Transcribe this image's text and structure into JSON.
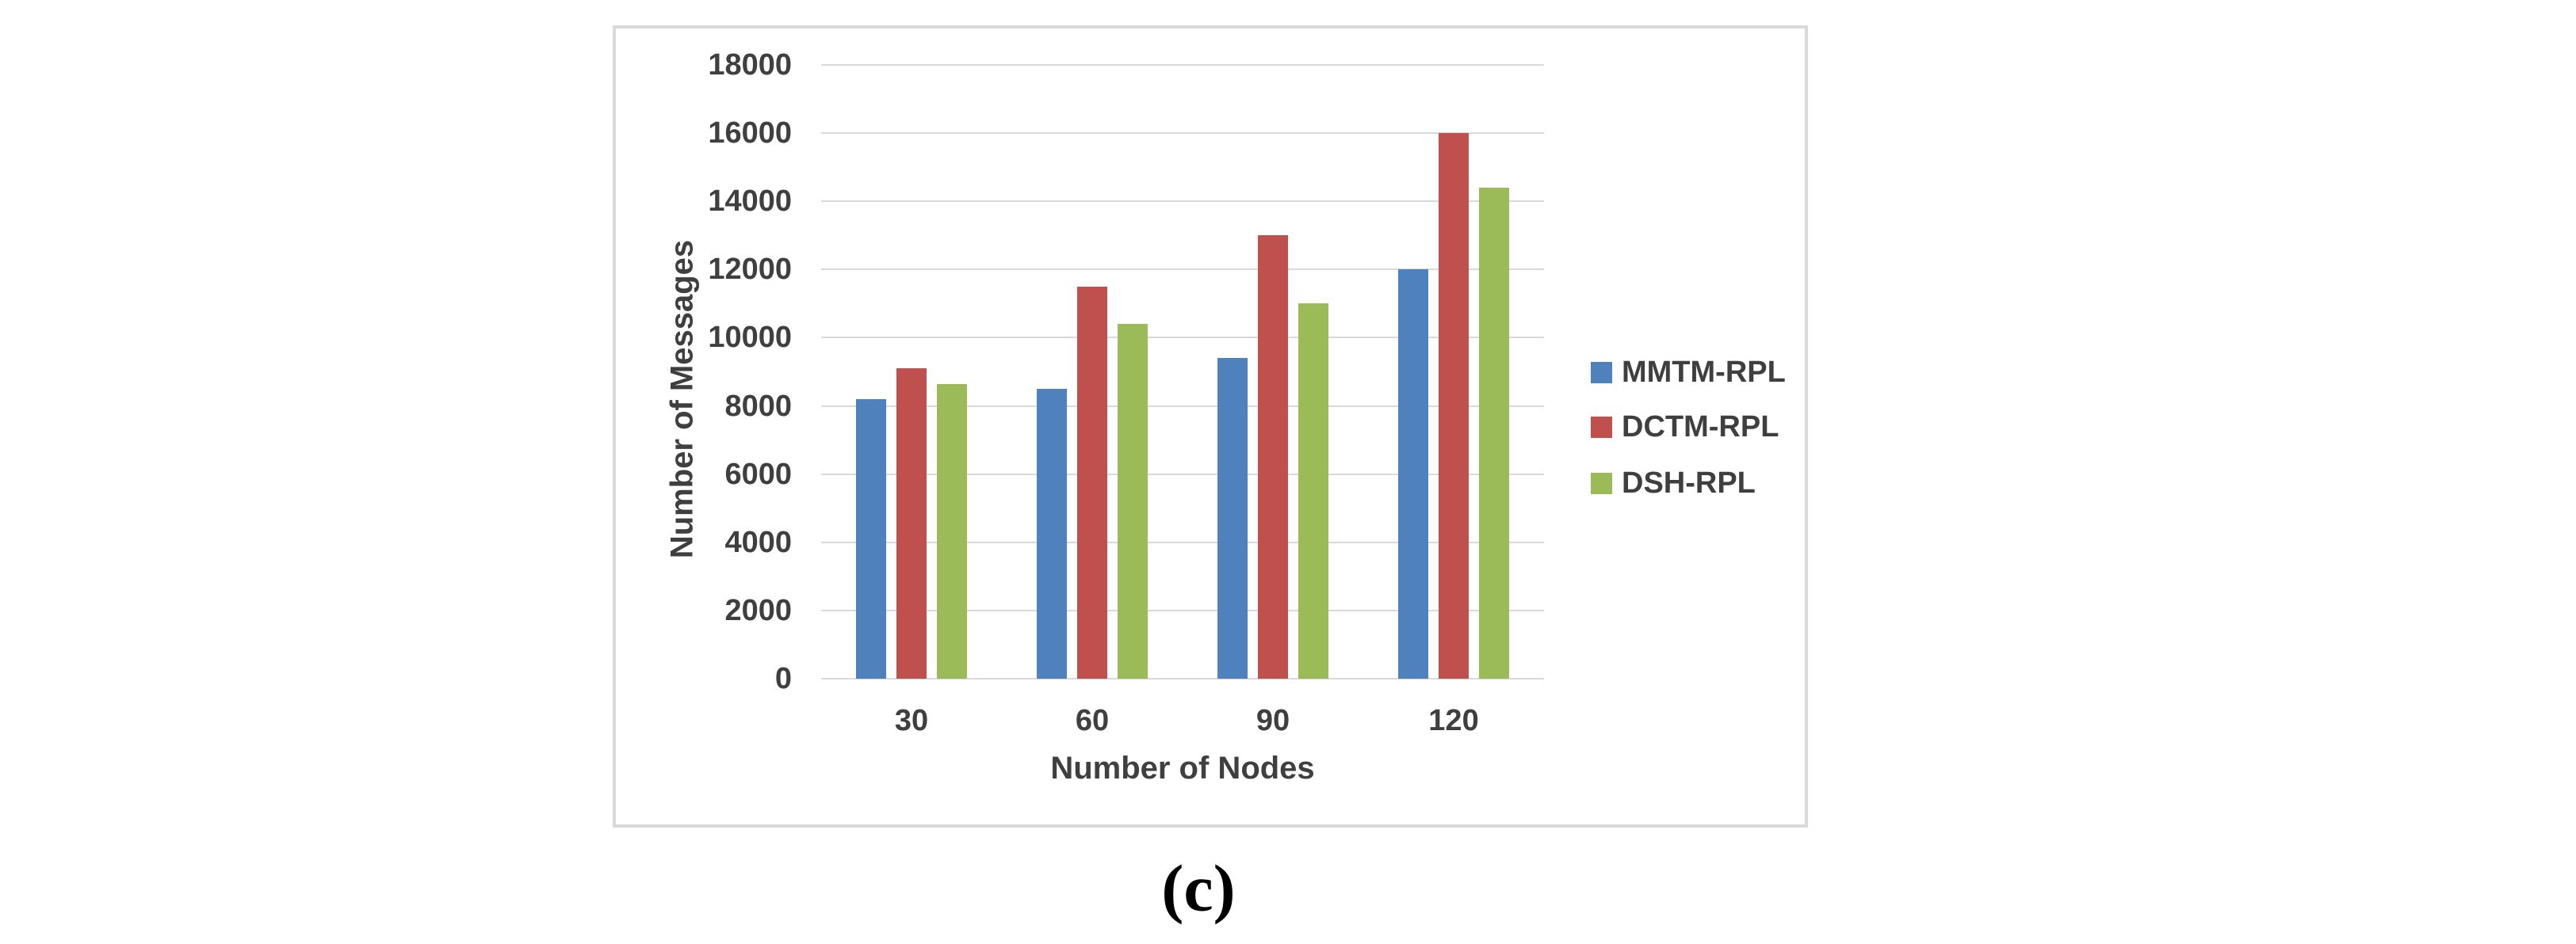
{
  "figure": {
    "caption": "(c)"
  },
  "chart_data": {
    "type": "bar",
    "title": "",
    "categories": [
      "30",
      "60",
      "90",
      "120"
    ],
    "series": [
      {
        "name": "MMTM-RPL",
        "color": "#4F81BD",
        "values": [
          8200,
          8500,
          9400,
          12000
        ]
      },
      {
        "name": "DCTM-RPL",
        "color": "#C0504D",
        "values": [
          9100,
          11500,
          13000,
          16000
        ]
      },
      {
        "name": "DSH-RPL",
        "color": "#9BBB59",
        "values": [
          8650,
          10400,
          11000,
          14400
        ]
      }
    ],
    "xlabel": "Number of Nodes",
    "ylabel": "Number of Messages",
    "ylim": [
      0,
      18000
    ],
    "ytick_step": 2000,
    "grid": true,
    "legend_position": "right",
    "gridline_color": "#D9D9D9",
    "frame_border_color": "#D9D9D9",
    "text_color": "#3F3F3F"
  }
}
